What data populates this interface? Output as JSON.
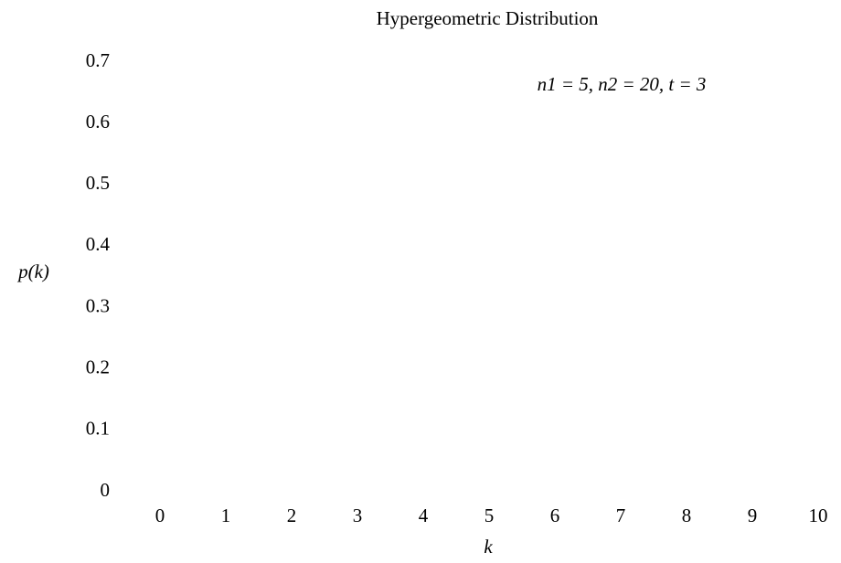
{
  "chart_data": {
    "type": "bar",
    "title": "Hypergeometric Distribution",
    "annotation": "n1 = 5, n2 = 20, t = 3",
    "xlabel": "k",
    "ylabel": "p(k)",
    "xlim": [
      0,
      10
    ],
    "xticks": [
      0,
      1,
      2,
      3,
      4,
      5,
      6,
      7,
      8,
      9,
      10
    ],
    "ylim": [
      0,
      0.7
    ],
    "yticks": [
      0,
      0.1,
      0.2,
      0.3,
      0.4,
      0.5,
      0.6,
      0.7
    ],
    "grid": false
  }
}
